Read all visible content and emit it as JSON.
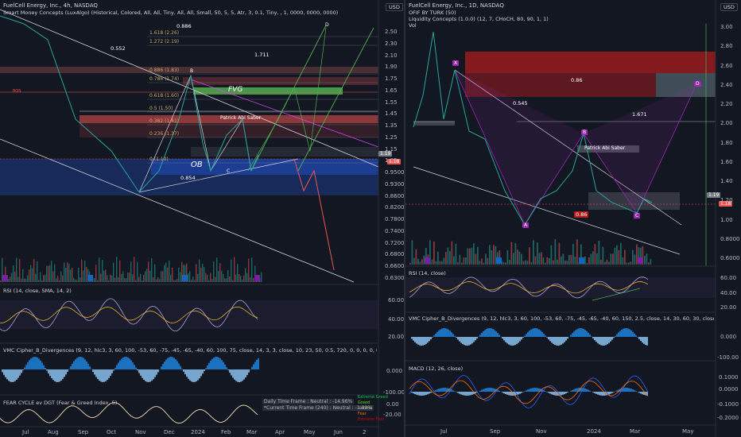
{
  "left": {
    "title": "FuelCell Energy, Inc., 4h, NASDAQ",
    "indicator": "Smart Money Concepts (LuxAlgo) (Historical, Colored, All, All, Tiny, All, All, Small, 50, 5, 5, Atr, 3, 0.1, Tiny, , 1, 0000, 0000, 0000)",
    "currency": "USD",
    "price_ticks": [
      "2.50",
      "2.30",
      "2.10",
      "1.90",
      "1.75",
      "1.65",
      "1.55",
      "1.45",
      "1.35",
      "1.25",
      "1.15",
      "1.05",
      "0.9500",
      "0.9300",
      "0.8600",
      "0.8200",
      "0.7800",
      "0.7400",
      "0.7200",
      "0.6800",
      "0.6600",
      "0.6300"
    ],
    "price_last": "1.19",
    "price_last_tag": "1.18",
    "fib_labels": [
      "1.618 (2.26)",
      "1.272 (2.19)",
      "0.886 (1.83)",
      "0.786 (1.74)",
      "0.618 (1.60)",
      "0.5 (1.50)",
      "0.382 (1.41)",
      "0.236 (1.37)",
      "0 (1.10)"
    ],
    "annotations": {
      "d_value": "0.886",
      "p1": "0.552",
      "p2": "1.711",
      "p3": "0.854",
      "fvg": "FVG",
      "ob": "OB",
      "saber": "Patrick Abi Saber",
      "bos": "BOS",
      "b": "B",
      "c": "C",
      "d": "D"
    },
    "time_ticks": [
      "Jul",
      "Aug",
      "Sep",
      "Oct",
      "Nov",
      "Dec",
      "2024",
      "Feb",
      "Mar",
      "Apr",
      "May",
      "Jun",
      "2"
    ],
    "rsi": {
      "label": "RSI (14, close, SMA, 14, 2)",
      "ticks": [
        "60.00",
        "40.00",
        "20.00"
      ]
    },
    "vmc": {
      "label": "VMC Cipher_B_Divergences (9, 12, hlc3, 3, 60, 100, -53, 60, -75, -45, -65, -40, 60, 100, 75, close, 14, 3, 3, close, 10, 23, 50, 0.5, 720, 0, 0, 0, 0, 0, 60, 240)",
      "ticks": [
        "0.000",
        "-100.00"
      ]
    },
    "fear": {
      "label": "FEAR CYCLE ev DGT (Fear & Greed Index, 5)",
      "ticks": [
        "-20.00",
        "0.00"
      ],
      "info1": "Daily Time Frame : Neutral : -14.96%",
      "info2": "*Current Time Frame (240) : Neutral : -1.89%",
      "legend": [
        "Extreme Greed",
        "Greed",
        "Neutral",
        "Fear",
        "Extreme Fear"
      ]
    }
  },
  "right": {
    "title": "FuelCell Energy, Inc., 1D, NASDAQ",
    "indicator1": "OFIF BY TURK (50)",
    "indicator2": "Liquidity Concepts (1.0.0) (12, 7, CHoCH, 80, 90, 1, 1)",
    "indicator3": "Vol",
    "currency": "USD",
    "price_ticks": [
      "3.00",
      "2.80",
      "2.60",
      "2.40",
      "2.20",
      "2.00",
      "1.80",
      "1.60",
      "1.40",
      "1.20",
      "1.00",
      "0.8000",
      "0.6000"
    ],
    "price_last": "1.19",
    "price_last_tag": "1.18",
    "annotations": {
      "v1": "0.86",
      "v2": "0.545",
      "v3": "1.671",
      "v4": "0.86",
      "saber": "Patrick Abi Saber",
      "x": "X",
      "a": "A",
      "b": "B",
      "c": "C",
      "d": "D"
    },
    "time_ticks": [
      "Jul",
      "Sep",
      "Nov",
      "2024",
      "Mar",
      "May"
    ],
    "rsi": {
      "label": "RSI (14, close)",
      "ticks": [
        "60.00",
        "40.00",
        "20.00"
      ]
    },
    "vmc": {
      "label": "VMC Cipher_B_Divergences (9, 12, hlc3, 3, 60, 100, -53, 60, -75, -45, -65, -40, 60, 150, 2.5, close, 14, 30, 60, 30, close, 14, 14, 3, 3, close, 10,",
      "ticks": [
        "0.000",
        "-100.00"
      ]
    },
    "macd": {
      "label": "MACD (12, 26, close)",
      "ticks": [
        "0.1000",
        "0.0000",
        "-0.1000",
        "-0.2000"
      ]
    }
  },
  "colors": {
    "bg": "#131722",
    "up": "#26a69a",
    "down": "#ef5350",
    "fvg": "#4caf50",
    "grid": "#1e222d"
  }
}
